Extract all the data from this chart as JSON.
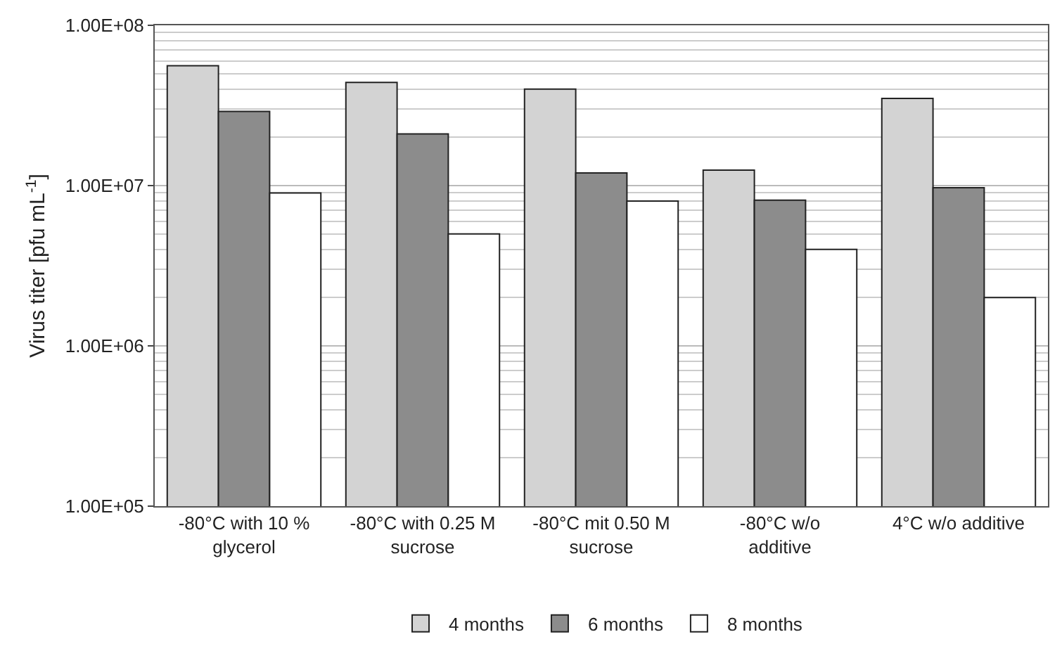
{
  "chart_data": {
    "type": "bar",
    "ylabel": "Virus titer [pfu mL$^{-1}$]",
    "categories": [
      "-80°C with 10 % glycerol",
      "-80°C with 0.25 M sucrose",
      "-80°C mit 0.50 M sucrose",
      "-80°C w/o additive",
      "4°C w/o additive"
    ],
    "series": [
      {
        "name": "4 months",
        "color": "#d3d3d3",
        "values": [
          56000000,
          44000000,
          40000000,
          12500000,
          35000000
        ]
      },
      {
        "name": "6 months",
        "color": "#8c8c8c",
        "values": [
          29000000,
          21000000,
          12000000,
          8100000,
          9700000
        ]
      },
      {
        "name": "8 months",
        "color": "#ffffff",
        "values": [
          9000000,
          5000000,
          8000000,
          4000000,
          2000000
        ]
      }
    ],
    "log": true,
    "ylim": [
      100000,
      100000000
    ],
    "yticks": [
      {
        "value": 100000,
        "label": "1.00E+05"
      },
      {
        "value": 1000000,
        "label": "1.00E+06"
      },
      {
        "value": 10000000,
        "label": "1.00E+07"
      },
      {
        "value": 100000000,
        "label": "1.00E+08"
      }
    ],
    "grid": "y",
    "legend": "bottom"
  }
}
